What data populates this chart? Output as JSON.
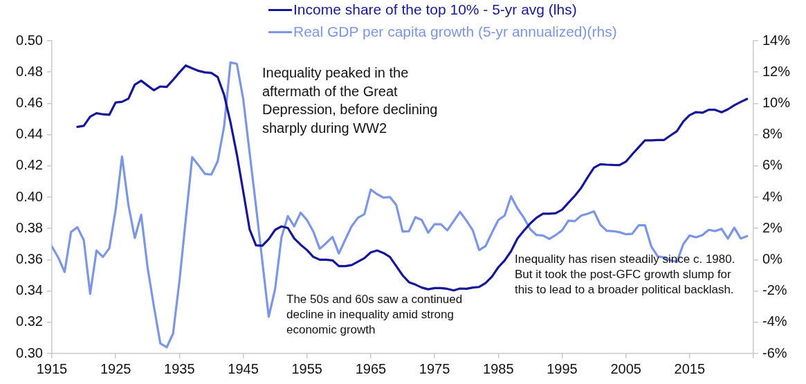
{
  "chart_data": {
    "type": "line",
    "x": [
      1915,
      1916,
      1917,
      1918,
      1919,
      1920,
      1921,
      1922,
      1923,
      1924,
      1925,
      1926,
      1927,
      1928,
      1929,
      1930,
      1931,
      1932,
      1933,
      1934,
      1935,
      1936,
      1937,
      1938,
      1939,
      1940,
      1941,
      1942,
      1943,
      1944,
      1945,
      1946,
      1947,
      1948,
      1949,
      1950,
      1951,
      1952,
      1953,
      1954,
      1955,
      1956,
      1957,
      1958,
      1959,
      1960,
      1961,
      1962,
      1963,
      1964,
      1965,
      1966,
      1967,
      1968,
      1969,
      1970,
      1971,
      1972,
      1973,
      1974,
      1975,
      1976,
      1977,
      1978,
      1979,
      1980,
      1981,
      1982,
      1983,
      1984,
      1985,
      1986,
      1987,
      1988,
      1989,
      1990,
      1991,
      1992,
      1993,
      1994,
      1995,
      1996,
      1997,
      1998,
      1999,
      2000,
      2001,
      2002,
      2003,
      2004,
      2005,
      2006,
      2007,
      2008,
      2009,
      2010,
      2011,
      2012,
      2013,
      2014,
      2015,
      2016,
      2017,
      2018,
      2019,
      2020,
      2021,
      2022,
      2023,
      2024
    ],
    "series": [
      {
        "name": "Income share of the top 10% - 5-yr avg (lhs)",
        "color": "#16169a",
        "values": [
          null,
          null,
          null,
          null,
          0.445,
          0.4456,
          0.4515,
          0.4537,
          0.453,
          0.4527,
          0.4606,
          0.461,
          0.463,
          0.472,
          0.4745,
          0.4714,
          0.4684,
          0.4708,
          0.4705,
          0.475,
          0.4798,
          0.4842,
          0.4824,
          0.4808,
          0.4798,
          0.4795,
          0.4768,
          0.4655,
          0.448,
          0.4274,
          0.4038,
          0.3795,
          0.3692,
          0.369,
          0.3732,
          0.3791,
          0.3813,
          0.3803,
          0.3736,
          0.3696,
          0.3662,
          0.3618,
          0.36,
          0.36,
          0.3596,
          0.3559,
          0.3559,
          0.3566,
          0.3588,
          0.361,
          0.3647,
          0.3659,
          0.3643,
          0.3618,
          0.3559,
          0.35,
          0.3456,
          0.3441,
          0.3422,
          0.3411,
          0.3419,
          0.3419,
          0.3414,
          0.3404,
          0.3416,
          0.3414,
          0.3422,
          0.3426,
          0.3451,
          0.3492,
          0.3552,
          0.3596,
          0.3655,
          0.3736,
          0.3785,
          0.3832,
          0.3869,
          0.3894,
          0.3894,
          0.3898,
          0.392,
          0.3965,
          0.4009,
          0.406,
          0.4127,
          0.4189,
          0.4211,
          0.4208,
          0.4206,
          0.4205,
          0.4227,
          0.4274,
          0.4319,
          0.4363,
          0.4363,
          0.4366,
          0.4366,
          0.4395,
          0.4422,
          0.4484,
          0.4525,
          0.4544,
          0.454,
          0.4559,
          0.4559,
          0.4543,
          0.4562,
          0.4588,
          0.4609,
          0.4628
        ]
      },
      {
        "name": "Real GDP per capita growth (5-yr annualized)(rhs)",
        "color": "#7b96e6",
        "axis": "y2",
        "values": [
          0.84,
          0.14,
          -0.78,
          1.77,
          2.08,
          1.26,
          -2.18,
          0.59,
          0.18,
          0.73,
          3.2,
          6.6,
          3.5,
          1.39,
          2.88,
          -0.48,
          -2.99,
          -5.35,
          -5.6,
          -4.73,
          -1.37,
          2.61,
          6.55,
          6.04,
          5.49,
          5.45,
          6.3,
          8.51,
          12.61,
          12.53,
          10.28,
          6.86,
          3.44,
          -0.11,
          -3.65,
          -1.88,
          1.43,
          2.79,
          2.14,
          3.01,
          2.54,
          1.8,
          0.7,
          1.06,
          1.46,
          0.4,
          1.29,
          2.14,
          2.69,
          2.91,
          4.49,
          4.19,
          3.97,
          4.01,
          3.5,
          1.8,
          1.83,
          2.72,
          2.54,
          1.73,
          2.27,
          2.27,
          1.88,
          2.47,
          3.06,
          2.5,
          1.88,
          0.62,
          0.87,
          1.73,
          2.54,
          2.83,
          4.06,
          3.28,
          2.69,
          1.95,
          1.58,
          1.55,
          1.33,
          1.58,
          1.88,
          2.5,
          2.47,
          2.83,
          2.94,
          3.09,
          2.24,
          1.85,
          1.83,
          1.76,
          1.63,
          1.66,
          2.2,
          2.2,
          0.84,
          0.21,
          0.15,
          -0.04,
          -0.14,
          0.99,
          1.55,
          1.43,
          1.58,
          1.91,
          1.83,
          1.98,
          1.35,
          2.05,
          1.36,
          1.51
        ]
      }
    ],
    "xlim": [
      1915,
      2025
    ],
    "xticks": [
      1915,
      1925,
      1935,
      1945,
      1955,
      1965,
      1975,
      1985,
      1995,
      2005,
      2015,
      {
        "value": 2025,
        "label": null
      }
    ],
    "ylim": [
      0.3,
      0.5
    ],
    "yticks": [
      {
        "value": 0.3,
        "label": "0.30"
      },
      {
        "value": 0.32,
        "label": "0.32"
      },
      {
        "value": 0.34,
        "label": "0.34"
      },
      {
        "value": 0.36,
        "label": "0.36"
      },
      {
        "value": 0.38,
        "label": "0.38"
      },
      {
        "value": 0.4,
        "label": "0.40"
      },
      {
        "value": 0.42,
        "label": "0.42"
      },
      {
        "value": 0.44,
        "label": "0.44"
      },
      {
        "value": 0.46,
        "label": "0.46"
      },
      {
        "value": 0.48,
        "label": "0.48"
      },
      {
        "value": 0.5,
        "label": "0.50"
      }
    ],
    "y2lim": [
      -6,
      14
    ],
    "y2ticks": [
      {
        "value": -6,
        "label": "-6%"
      },
      {
        "value": -4,
        "label": "-4%"
      },
      {
        "value": -2,
        "label": "-2%"
      },
      {
        "value": 0,
        "label": "0%"
      },
      {
        "value": 2,
        "label": "2%"
      },
      {
        "value": 4,
        "label": "4%"
      },
      {
        "value": 6,
        "label": "6%"
      },
      {
        "value": 8,
        "label": "8%"
      },
      {
        "value": 10,
        "label": "10%"
      },
      {
        "value": 12,
        "label": "12%"
      },
      {
        "value": 14,
        "label": "14%"
      }
    ],
    "legend": "top",
    "marker": "none",
    "annotations": [
      "Inequality peaked in the aftermath of the Great Depression, before declining sharply during WW2",
      "The 50s and 60s saw a continued decline in inequality amid strong economic growth",
      "Inequality has risen steadily since c. 1980. But it took the post-GFC growth slump for this to lead to a broader political backlash."
    ]
  }
}
